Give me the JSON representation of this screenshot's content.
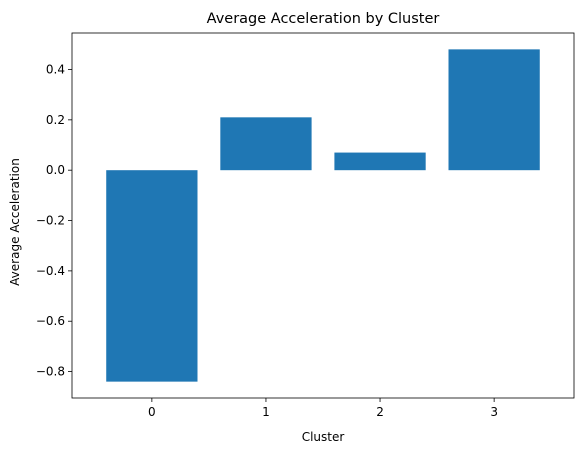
{
  "chart_data": {
    "type": "bar",
    "title": "Average Acceleration by Cluster",
    "xlabel": "Cluster",
    "ylabel": "Average Acceleration",
    "categories": [
      "0",
      "1",
      "2",
      "3"
    ],
    "values": [
      -0.84,
      0.21,
      0.07,
      0.48
    ],
    "ylim": [
      -0.905,
      0.545
    ],
    "yticks": [
      -0.8,
      -0.6,
      -0.4,
      -0.2,
      0.0,
      0.2,
      0.4
    ],
    "ytick_labels": [
      "−0.8",
      "−0.6",
      "−0.4",
      "−0.2",
      "0.0",
      "0.2",
      "0.4"
    ],
    "grid": false,
    "legend": "none",
    "bar_color": "#1f77b4"
  }
}
